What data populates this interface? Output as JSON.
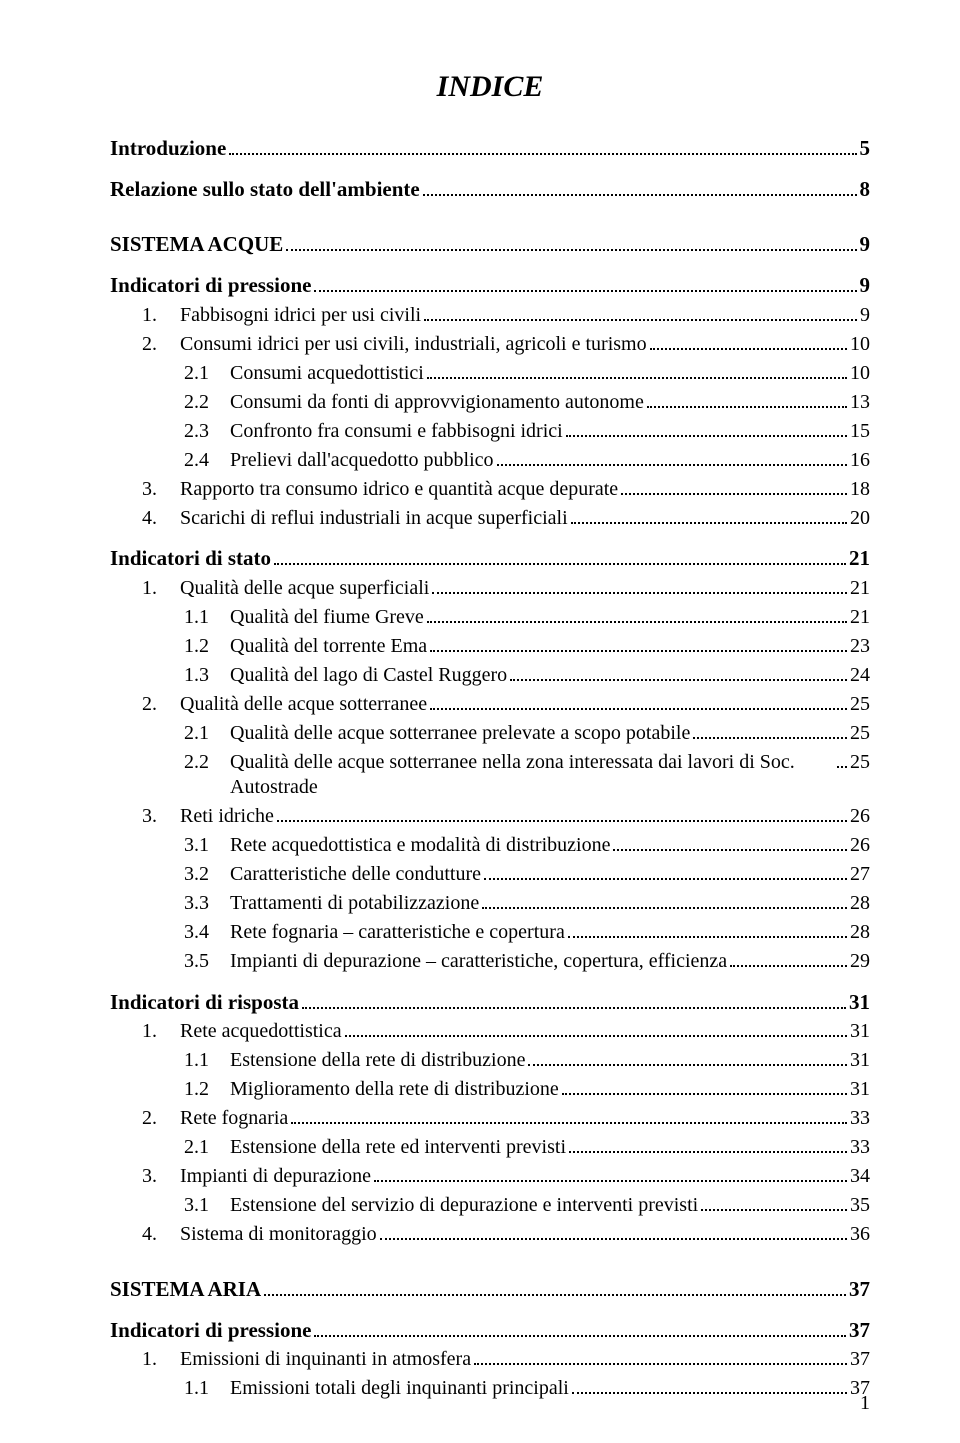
{
  "colors": {
    "text": "#000000",
    "background": "#ffffff",
    "dots": "#000000"
  },
  "typography": {
    "family": "Times New Roman",
    "body_size_pt": 15,
    "title_size_pt": 22,
    "heading_size_pt": 16,
    "title_style": "bold-italic"
  },
  "doc": {
    "title": "INDICE",
    "page_number": "1"
  },
  "toc": [
    {
      "kind": "heading",
      "label": "Introduzione",
      "page": "5"
    },
    {
      "kind": "heading",
      "label": "Relazione sullo stato dell'ambiente",
      "page": "8"
    },
    {
      "kind": "sistema",
      "label": "SISTEMA ACQUE",
      "page": "9"
    },
    {
      "kind": "sub-heading",
      "label": "Indicatori di pressione",
      "page": "9"
    },
    {
      "kind": "l1",
      "num": "1.",
      "label": "Fabbisogni idrici per usi civili",
      "page": "9"
    },
    {
      "kind": "l1",
      "num": "2.",
      "label": "Consumi idrici per usi civili, industriali, agricoli e turismo",
      "page": "10"
    },
    {
      "kind": "l2",
      "num": "2.1",
      "label": "Consumi acquedottistici",
      "page": "10"
    },
    {
      "kind": "l2",
      "num": "2.2",
      "label": "Consumi da fonti di approvvigionamento autonome",
      "page": "13"
    },
    {
      "kind": "l2",
      "num": "2.3",
      "label": "Confronto fra consumi e fabbisogni idrici",
      "page": "15"
    },
    {
      "kind": "l2",
      "num": "2.4",
      "label": "Prelievi dall'acquedotto pubblico",
      "page": "16"
    },
    {
      "kind": "l1",
      "num": "3.",
      "label": "Rapporto tra consumo idrico e quantità acque depurate",
      "page": "18"
    },
    {
      "kind": "l1",
      "num": "4.",
      "label": "Scarichi di reflui industriali in acque superficiali",
      "page": "20"
    },
    {
      "kind": "sub-heading",
      "label": "Indicatori di stato",
      "page": "21"
    },
    {
      "kind": "l1",
      "num": "1.",
      "label": "Qualità delle acque superficiali",
      "page": "21"
    },
    {
      "kind": "l2",
      "num": "1.1",
      "label": "Qualità del fiume Greve",
      "page": "21"
    },
    {
      "kind": "l2",
      "num": "1.2",
      "label": "Qualità del torrente Ema",
      "page": "23"
    },
    {
      "kind": "l2",
      "num": "1.3",
      "label": "Qualità del lago di Castel Ruggero",
      "page": "24"
    },
    {
      "kind": "l1",
      "num": "2.",
      "label": "Qualità delle acque sotterranee",
      "page": "25"
    },
    {
      "kind": "l2",
      "num": "2.1",
      "label": "Qualità delle acque sotterranee prelevate a scopo potabile",
      "page": "25"
    },
    {
      "kind": "l2",
      "num": "2.2",
      "label": "Qualità delle acque sotterranee nella zona interessata dai lavori di Soc. Autostrade",
      "page": "25"
    },
    {
      "kind": "l1",
      "num": "3.",
      "label": "Reti idriche",
      "page": "26"
    },
    {
      "kind": "l2",
      "num": "3.1",
      "label": "Rete acquedottistica e modalità di distribuzione",
      "page": "26"
    },
    {
      "kind": "l2",
      "num": "3.2",
      "label": "Caratteristiche delle condutture",
      "page": "27"
    },
    {
      "kind": "l2",
      "num": "3.3",
      "label": "Trattamenti di potabilizzazione",
      "page": "28"
    },
    {
      "kind": "l2",
      "num": "3.4",
      "label": "Rete fognaria – caratteristiche e copertura",
      "page": "28"
    },
    {
      "kind": "l2",
      "num": "3.5",
      "label": "Impianti di depurazione – caratteristiche, copertura, efficienza",
      "page": "29"
    },
    {
      "kind": "sub-heading",
      "label": "Indicatori di risposta",
      "page": "31"
    },
    {
      "kind": "l1",
      "num": "1.",
      "label": "Rete acquedottistica",
      "page": "31"
    },
    {
      "kind": "l2",
      "num": "1.1",
      "label": "Estensione della rete di distribuzione",
      "page": "31"
    },
    {
      "kind": "l2",
      "num": "1.2",
      "label": "Miglioramento della rete di distribuzione",
      "page": "31"
    },
    {
      "kind": "l1",
      "num": "2.",
      "label": "Rete fognaria",
      "page": "33"
    },
    {
      "kind": "l2",
      "num": "2.1",
      "label": "Estensione della rete ed interventi previsti",
      "page": "33"
    },
    {
      "kind": "l1",
      "num": "3.",
      "label": "Impianti di depurazione",
      "page": "34"
    },
    {
      "kind": "l2",
      "num": "3.1",
      "label": "Estensione del servizio di depurazione e interventi previsti",
      "page": "35"
    },
    {
      "kind": "l1",
      "num": "4.",
      "label": "Sistema di monitoraggio",
      "page": "36"
    },
    {
      "kind": "sistema",
      "label": "SISTEMA ARIA",
      "page": "37"
    },
    {
      "kind": "sub-heading",
      "label": "Indicatori di pressione",
      "page": "37"
    },
    {
      "kind": "l1",
      "num": "1.",
      "label": "Emissioni di inquinanti in atmosfera",
      "page": "37"
    },
    {
      "kind": "l2",
      "num": "1.1",
      "label": "Emissioni totali degli inquinanti principali",
      "page": "37"
    }
  ]
}
